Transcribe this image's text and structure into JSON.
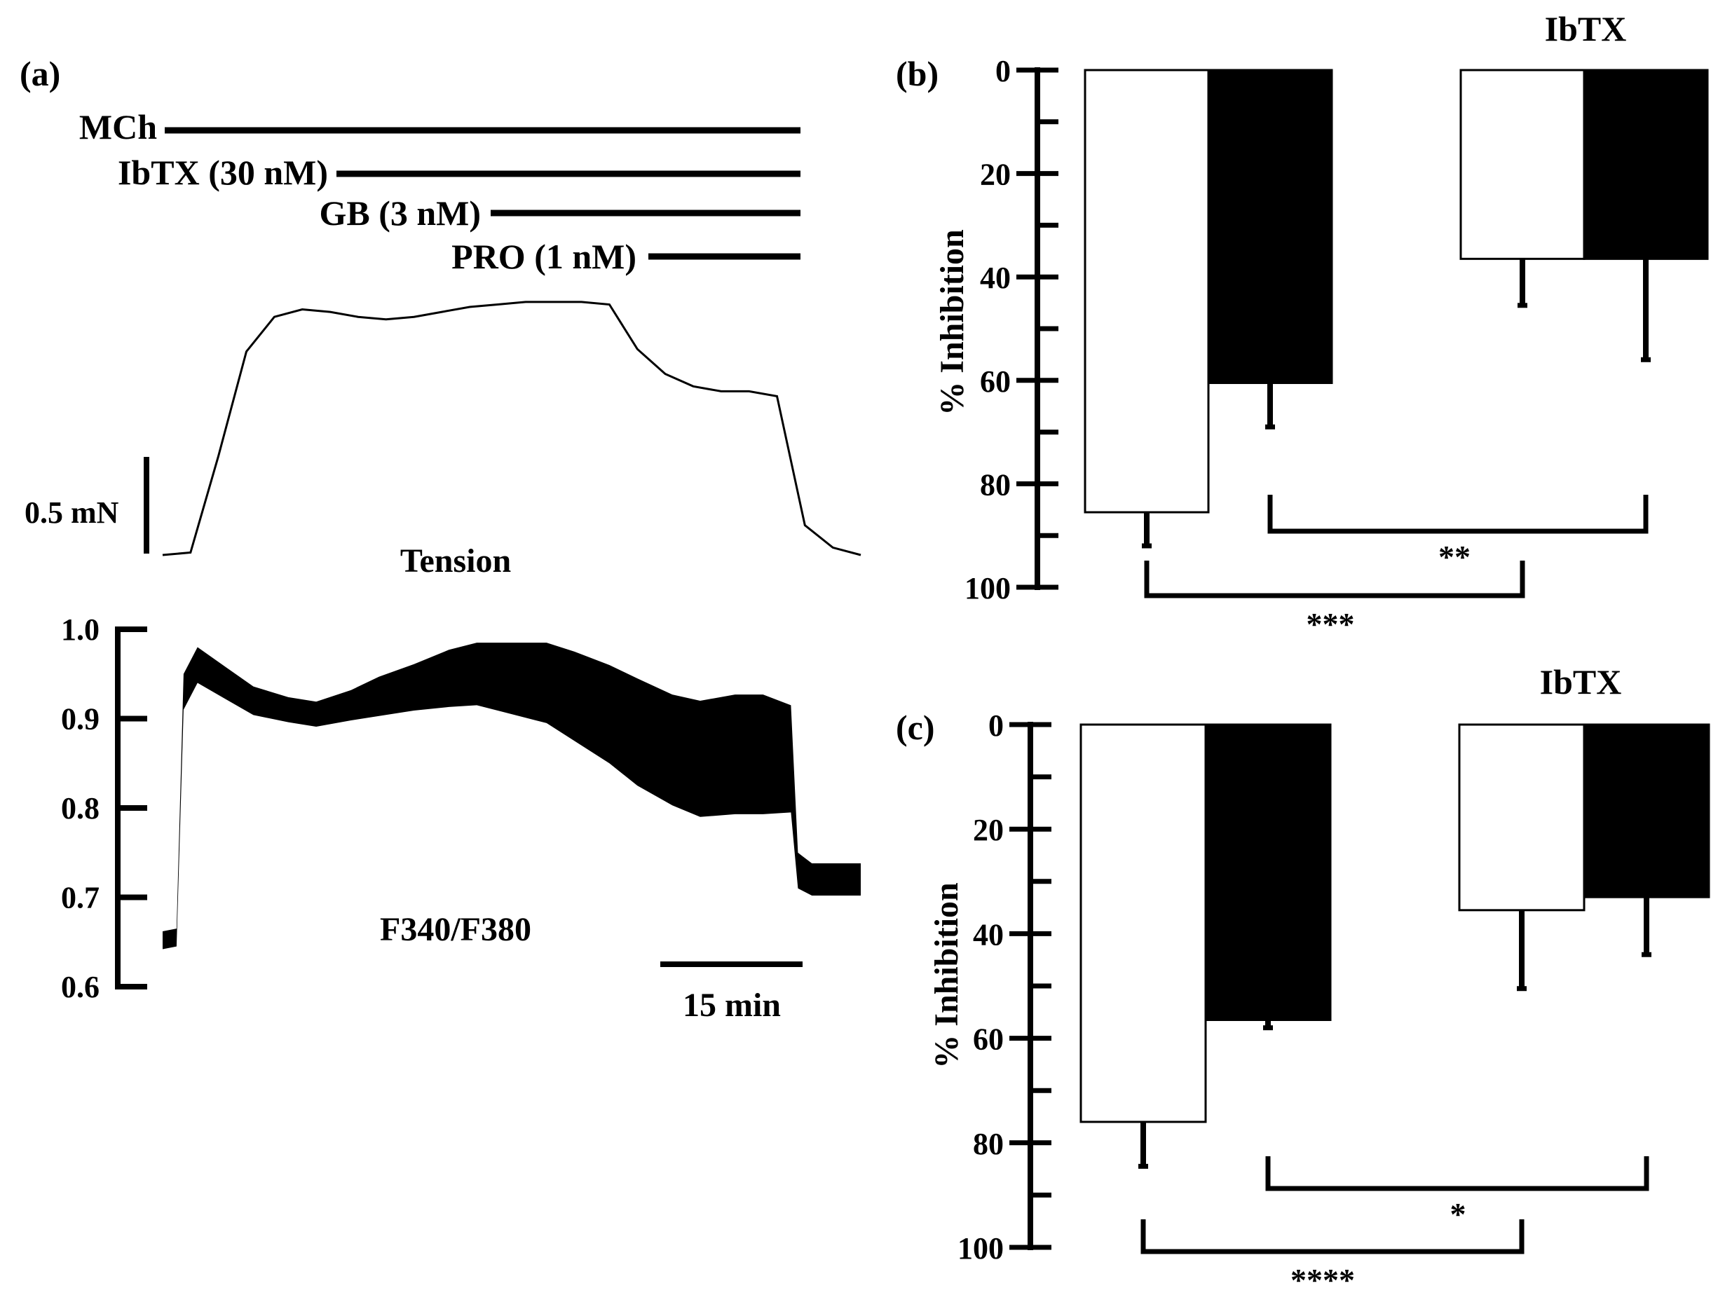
{
  "panel_a": {
    "label": "(a)",
    "treatments": [
      {
        "label": "MCh"
      },
      {
        "label": "IbTX (30 nM)"
      },
      {
        "label": "GB (3 nM)"
      },
      {
        "label": "PRO (1 nM)"
      }
    ],
    "tension_label": "Tension",
    "tension_scale_label": "0.5 mN",
    "ratio_label": "F340/F380",
    "time_scale_label": "15 min"
  },
  "chart_data": [
    {
      "type": "line",
      "panel": "(a)",
      "traces": [
        {
          "name": "Tension",
          "scale_bar": "0.5 mN",
          "time_scale_bar": "15 min",
          "samples_relative": [
            0,
            0.01,
            0.4,
            0.82,
            0.96,
            0.99,
            0.98,
            0.96,
            0.95,
            0.96,
            0.98,
            1.0,
            1.01,
            1.02,
            1.02,
            1.02,
            1.01,
            0.83,
            0.73,
            0.68,
            0.66,
            0.66,
            0.64,
            0.12,
            0.03,
            0.0
          ]
        },
        {
          "name": "F340/F380",
          "ylim": [
            0.6,
            1.0
          ],
          "yticks": [
            "0.6",
            "0.7",
            "0.8",
            "0.9",
            "1.0"
          ],
          "x_min": [
            0,
            2,
            3,
            5,
            9,
            13,
            18,
            22,
            27,
            31,
            36,
            41,
            45,
            50,
            55,
            59,
            64,
            68,
            73,
            77,
            82,
            86,
            90,
            91,
            93,
            100
          ],
          "center": [
            0.652,
            0.655,
            0.93,
            0.96,
            0.94,
            0.92,
            0.91,
            0.905,
            0.915,
            0.925,
            0.935,
            0.945,
            0.95,
            0.945,
            0.94,
            0.925,
            0.905,
            0.885,
            0.865,
            0.855,
            0.86,
            0.86,
            0.855,
            0.73,
            0.72,
            0.72
          ],
          "half_band": [
            0.01,
            0.01,
            0.02,
            0.02,
            0.018,
            0.016,
            0.014,
            0.014,
            0.017,
            0.022,
            0.026,
            0.032,
            0.035,
            0.04,
            0.045,
            0.05,
            0.055,
            0.06,
            0.062,
            0.065,
            0.067,
            0.067,
            0.06,
            0.02,
            0.018,
            0.018
          ]
        }
      ]
    },
    {
      "type": "bar",
      "panel": "(b)",
      "title": "IbTX",
      "ylabel": "% Inhibition",
      "ylim": [
        0,
        100
      ],
      "yticks": [
        "0",
        "20",
        "40",
        "60",
        "80",
        "100"
      ],
      "inverted": true,
      "bars": [
        {
          "group": 1,
          "fill": "#ffffff",
          "value": 85.5,
          "error": 6.5
        },
        {
          "group": 1,
          "fill": "#000000",
          "value": 60.5,
          "error": 8.5
        },
        {
          "group": 2,
          "fill": "#ffffff",
          "value": 36.5,
          "error": 9
        },
        {
          "group": 2,
          "fill": "#000000",
          "value": 36.5,
          "error": 19.5
        }
      ],
      "significance": [
        {
          "bars": [
            0,
            2
          ],
          "label": "***"
        },
        {
          "bars": [
            1,
            3
          ],
          "label": "**"
        }
      ]
    },
    {
      "type": "bar",
      "panel": "(c)",
      "title": "IbTX",
      "ylabel": "% Inhibition",
      "ylim": [
        0,
        100
      ],
      "yticks": [
        "0",
        "20",
        "40",
        "60",
        "80",
        "100"
      ],
      "inverted": true,
      "bars": [
        {
          "group": 1,
          "fill": "#ffffff",
          "value": 76,
          "error": 8.5
        },
        {
          "group": 1,
          "fill": "#000000",
          "value": 56.5,
          "error": 1.5
        },
        {
          "group": 2,
          "fill": "#ffffff",
          "value": 35.5,
          "error": 15
        },
        {
          "group": 2,
          "fill": "#000000",
          "value": 33,
          "error": 11
        }
      ],
      "significance": [
        {
          "bars": [
            0,
            2
          ],
          "label": "****"
        },
        {
          "bars": [
            1,
            3
          ],
          "label": "*"
        }
      ]
    }
  ]
}
